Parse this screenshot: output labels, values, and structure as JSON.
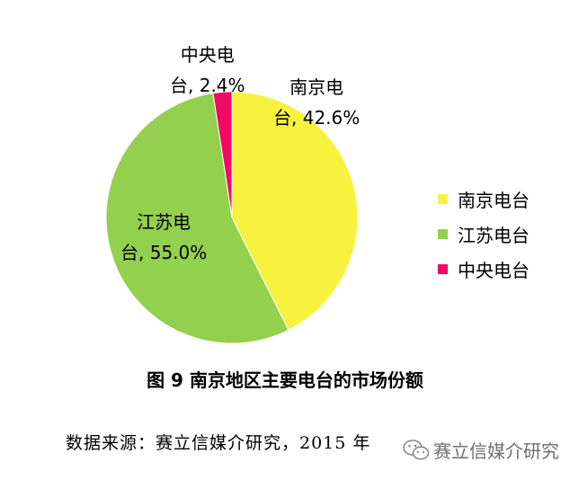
{
  "chart_data": {
    "type": "pie",
    "title": "图 9 南京地区主要电台的市场份额",
    "slices": [
      {
        "name": "南京电台",
        "value": 42.6,
        "color": "#f7f240",
        "label_line1": "南京电",
        "label_line2": "台, 42.6%"
      },
      {
        "name": "江苏电台",
        "value": 55.0,
        "color": "#93d04d",
        "label_line1": "江苏电",
        "label_line2": "台, 55.0%"
      },
      {
        "name": "中央电台",
        "value": 2.4,
        "color": "#ee0a65",
        "label_line1": "中央电",
        "label_line2": "台, 2.4%"
      }
    ],
    "legend": [
      "南京电台",
      "江苏电台",
      "中央电台"
    ],
    "legend_position": "right"
  },
  "source_text": "数据来源：赛立信媒介研究，2015 年",
  "watermark": {
    "text": "赛立信媒介研究",
    "icon": "wechat-icon"
  }
}
